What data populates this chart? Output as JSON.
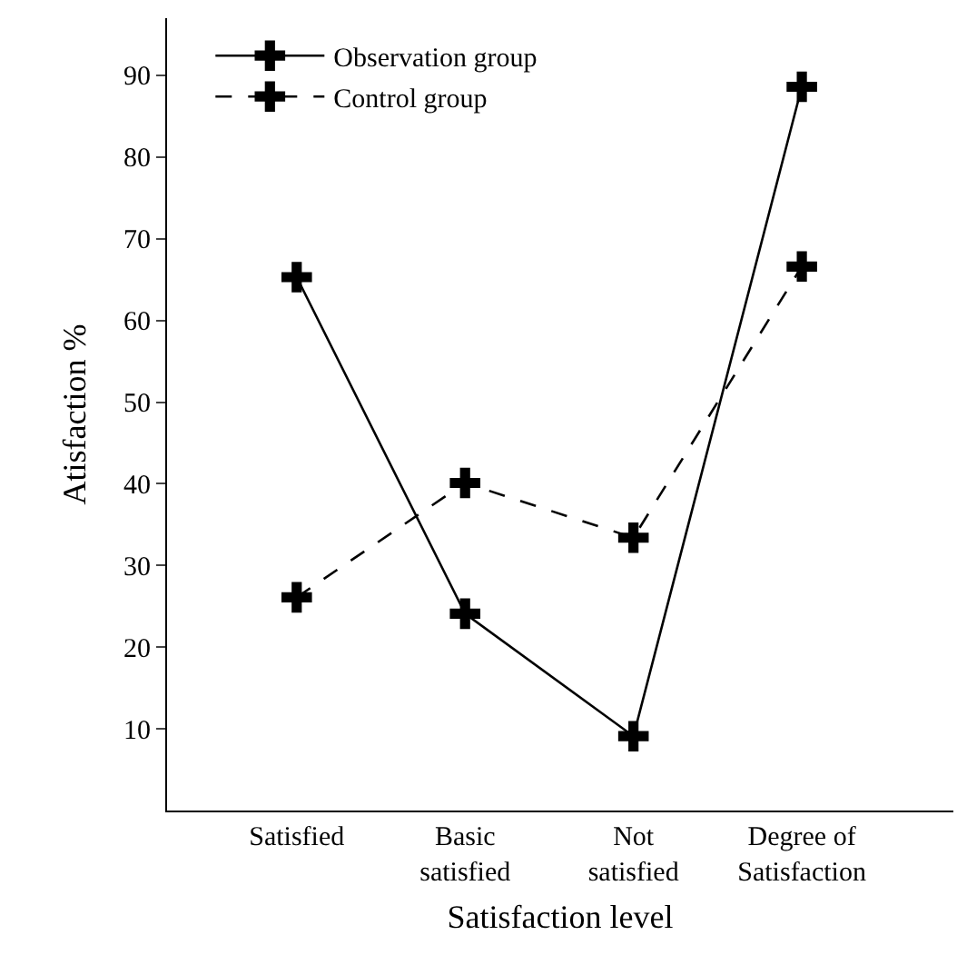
{
  "chart_data": {
    "type": "line",
    "xlabel": "Satisfaction level",
    "ylabel": "Atisfaction %",
    "categories": [
      "Satisfied",
      "Basic satisfied",
      "Not satisfied",
      "Degree of Satisfaction"
    ],
    "series": [
      {
        "name": "Observation group",
        "color": "#000000",
        "values": [
          65.3,
          24.1,
          9.1,
          88.6
        ],
        "line_style": "solid"
      },
      {
        "name": "Control group",
        "color": "#000000",
        "values": [
          26.1,
          40.1,
          33.4,
          66.6
        ],
        "line_style": "dashed"
      }
    ],
    "ylim": [
      0,
      97
    ],
    "yticks": [
      10,
      20,
      30,
      40,
      50,
      60,
      70,
      80,
      90
    ],
    "legend": "top left",
    "marker": "cross"
  }
}
